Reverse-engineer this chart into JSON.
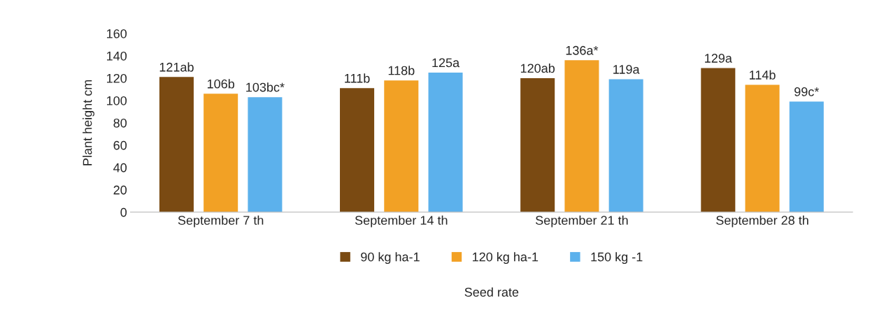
{
  "chart_data": {
    "type": "bar",
    "xlabel": "Seed rate",
    "ylabel": "Plant height cm",
    "categories": [
      "September 7 th",
      "September 14 th",
      "September 21 th",
      "September 28 th"
    ],
    "series": [
      {
        "name": "90 kg ha-1",
        "color": "#7a4a12",
        "values": [
          121,
          111,
          120,
          129
        ],
        "value_labels": [
          "121ab",
          "111b",
          "120ab",
          "129a"
        ]
      },
      {
        "name": "120 kg ha-1",
        "color": "#f2a125",
        "values": [
          106,
          118,
          136,
          114
        ],
        "value_labels": [
          "106b",
          "118b",
          "136a*",
          "114b"
        ]
      },
      {
        "name": "150 kg -1",
        "color": "#5cb1ec",
        "values": [
          103,
          125,
          119,
          99
        ],
        "value_labels": [
          "103bc*",
          "125a",
          "119a",
          "99c*"
        ]
      }
    ],
    "ylim": [
      0,
      160
    ],
    "yticks": [
      0,
      20,
      40,
      60,
      80,
      100,
      120,
      140,
      160
    ],
    "grid": false,
    "legend": "bottom"
  }
}
